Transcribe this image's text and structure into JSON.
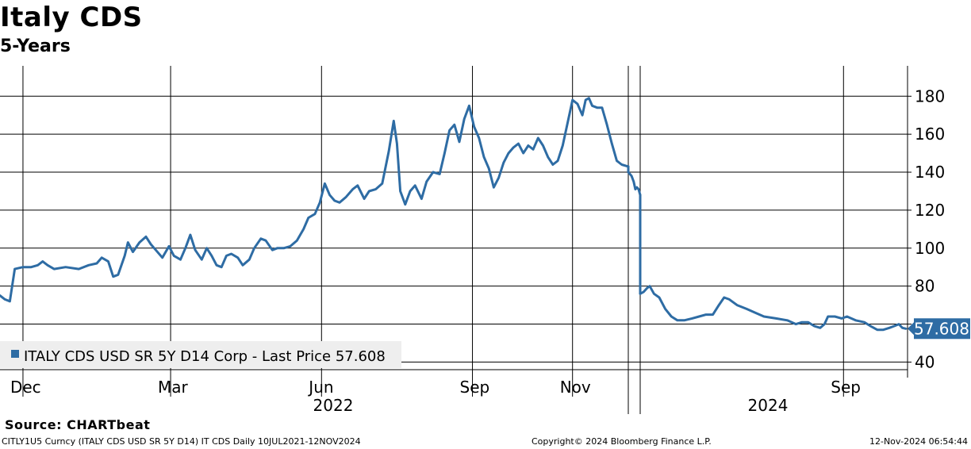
{
  "header": {
    "title": "Italy CDS",
    "subtitle": "5-Years"
  },
  "footer": {
    "source": "Source: CHARTbeat",
    "ticker_info": "CITLY1U5 Curncy (ITALY CDS USD SR 5Y D14) IT CDS  Daily 10JUL2021-12NOV2024",
    "copyright": "Copyright© 2024 Bloomberg Finance L.P.",
    "timestamp": "12-Nov-2024 06:54:44"
  },
  "colors": {
    "series": "#2e6ca4",
    "label_bg": "#2e6ca4",
    "legend_bg": "#eeeeee",
    "grid": "#000000"
  },
  "chart_data": {
    "type": "line",
    "x_type": "date",
    "series_name": "ITALY CDS USD SR 5Y D14 Corp - Last Price 57.608",
    "last_value_label": "57.608",
    "last_value": 57.608,
    "ylim": [
      36,
      196
    ],
    "y_ticks": [
      40,
      60,
      80,
      100,
      120,
      140,
      160,
      180
    ],
    "y_tick_labels": [
      "40",
      "",
      "80",
      "100",
      "120",
      "140",
      "160",
      "180"
    ],
    "y_axis_side": "right",
    "grid": true,
    "legend_position": "bottom-left",
    "segments": [
      {
        "xlim": [
          "2021-11-17",
          "2022-12-05"
        ],
        "x_ticks": [
          "2021-12-01",
          "2022-03-01",
          "2022-06-01",
          "2022-09-01",
          "2022-11-01"
        ],
        "month_labels": [
          "Dec",
          "Mar",
          "Jun",
          "Sep",
          "Nov"
        ],
        "year_label": "2022",
        "points": [
          [
            "2021-11-17",
            75
          ],
          [
            "2021-11-20",
            73
          ],
          [
            "2021-11-23",
            72
          ],
          [
            "2021-11-26",
            89
          ],
          [
            "2021-12-01",
            90
          ],
          [
            "2021-12-06",
            90
          ],
          [
            "2021-12-10",
            91
          ],
          [
            "2021-12-13",
            93
          ],
          [
            "2021-12-16",
            91
          ],
          [
            "2021-12-20",
            89
          ],
          [
            "2021-12-27",
            90
          ],
          [
            "2022-01-04",
            89
          ],
          [
            "2022-01-10",
            91
          ],
          [
            "2022-01-15",
            92
          ],
          [
            "2022-01-18",
            95
          ],
          [
            "2022-01-22",
            93
          ],
          [
            "2022-01-25",
            85
          ],
          [
            "2022-01-28",
            86
          ],
          [
            "2022-02-01",
            96
          ],
          [
            "2022-02-03",
            103
          ],
          [
            "2022-02-06",
            98
          ],
          [
            "2022-02-10",
            103
          ],
          [
            "2022-02-14",
            106
          ],
          [
            "2022-02-17",
            102
          ],
          [
            "2022-02-20",
            99
          ],
          [
            "2022-02-24",
            95
          ],
          [
            "2022-02-28",
            101
          ],
          [
            "2022-03-03",
            96
          ],
          [
            "2022-03-07",
            94
          ],
          [
            "2022-03-10",
            100
          ],
          [
            "2022-03-13",
            107
          ],
          [
            "2022-03-16",
            99
          ],
          [
            "2022-03-20",
            94
          ],
          [
            "2022-03-23",
            100
          ],
          [
            "2022-03-26",
            96
          ],
          [
            "2022-03-29",
            91
          ],
          [
            "2022-04-01",
            90
          ],
          [
            "2022-04-04",
            96
          ],
          [
            "2022-04-07",
            97
          ],
          [
            "2022-04-11",
            95
          ],
          [
            "2022-04-14",
            91
          ],
          [
            "2022-04-18",
            94
          ],
          [
            "2022-04-21",
            100
          ],
          [
            "2022-04-25",
            105
          ],
          [
            "2022-04-28",
            104
          ],
          [
            "2022-05-02",
            99
          ],
          [
            "2022-05-05",
            100
          ],
          [
            "2022-05-09",
            100
          ],
          [
            "2022-05-13",
            101
          ],
          [
            "2022-05-17",
            104
          ],
          [
            "2022-05-21",
            110
          ],
          [
            "2022-05-24",
            116
          ],
          [
            "2022-05-28",
            118
          ],
          [
            "2022-05-31",
            124
          ],
          [
            "2022-06-03",
            134
          ],
          [
            "2022-06-06",
            128
          ],
          [
            "2022-06-09",
            125
          ],
          [
            "2022-06-12",
            124
          ],
          [
            "2022-06-16",
            127
          ],
          [
            "2022-06-20",
            131
          ],
          [
            "2022-06-23",
            133
          ],
          [
            "2022-06-27",
            126
          ],
          [
            "2022-06-30",
            130
          ],
          [
            "2022-07-04",
            131
          ],
          [
            "2022-07-08",
            134
          ],
          [
            "2022-07-12",
            151
          ],
          [
            "2022-07-15",
            167
          ],
          [
            "2022-07-17",
            155
          ],
          [
            "2022-07-19",
            130
          ],
          [
            "2022-07-22",
            123
          ],
          [
            "2022-07-25",
            130
          ],
          [
            "2022-07-28",
            133
          ],
          [
            "2022-08-01",
            126
          ],
          [
            "2022-08-04",
            135
          ],
          [
            "2022-08-08",
            140
          ],
          [
            "2022-08-12",
            139
          ],
          [
            "2022-08-15",
            150
          ],
          [
            "2022-08-18",
            162
          ],
          [
            "2022-08-21",
            165
          ],
          [
            "2022-08-24",
            156
          ],
          [
            "2022-08-27",
            168
          ],
          [
            "2022-08-30",
            175
          ],
          [
            "2022-09-02",
            164
          ],
          [
            "2022-09-05",
            158
          ],
          [
            "2022-09-08",
            148
          ],
          [
            "2022-09-11",
            142
          ],
          [
            "2022-09-14",
            132
          ],
          [
            "2022-09-17",
            137
          ],
          [
            "2022-09-20",
            145
          ],
          [
            "2022-09-23",
            150
          ],
          [
            "2022-09-26",
            153
          ],
          [
            "2022-09-29",
            155
          ],
          [
            "2022-10-02",
            150
          ],
          [
            "2022-10-05",
            154
          ],
          [
            "2022-10-08",
            152
          ],
          [
            "2022-10-11",
            158
          ],
          [
            "2022-10-14",
            154
          ],
          [
            "2022-10-17",
            148
          ],
          [
            "2022-10-20",
            144
          ],
          [
            "2022-10-23",
            146
          ],
          [
            "2022-10-26",
            154
          ],
          [
            "2022-10-29",
            166
          ],
          [
            "2022-11-01",
            178
          ],
          [
            "2022-11-04",
            176
          ],
          [
            "2022-11-07",
            170
          ],
          [
            "2022-11-09",
            178
          ],
          [
            "2022-11-11",
            179
          ],
          [
            "2022-11-13",
            175
          ],
          [
            "2022-11-16",
            174
          ],
          [
            "2022-11-19",
            174
          ],
          [
            "2022-11-22",
            165
          ],
          [
            "2022-11-25",
            155
          ],
          [
            "2022-11-28",
            146
          ],
          [
            "2022-12-01",
            144
          ],
          [
            "2022-12-05",
            143
          ]
        ]
      },
      {
        "xlim": [
          "2023-09-22",
          "2023-10-14"
        ],
        "points": [
          [
            "2023-09-22",
            140
          ],
          [
            "2023-09-28",
            138
          ],
          [
            "2023-10-02",
            135
          ],
          [
            "2023-10-05",
            131
          ],
          [
            "2023-10-08",
            132
          ],
          [
            "2023-10-11",
            131
          ],
          [
            "2023-10-14",
            128
          ]
        ]
      },
      {
        "xlim": [
          "2024-01-10",
          "2024-11-14"
        ],
        "x_ticks": [
          "2024-09-01"
        ],
        "month_labels": [
          "Sep"
        ],
        "year_label": "2024",
        "points": [
          [
            "2024-01-10",
            76
          ],
          [
            "2024-01-14",
            77
          ],
          [
            "2024-01-18",
            79
          ],
          [
            "2024-01-21",
            80
          ],
          [
            "2024-01-26",
            76
          ],
          [
            "2024-02-01",
            74
          ],
          [
            "2024-02-08",
            68
          ],
          [
            "2024-02-15",
            64
          ],
          [
            "2024-02-22",
            62
          ],
          [
            "2024-03-01",
            62
          ],
          [
            "2024-03-10",
            63
          ],
          [
            "2024-03-18",
            64
          ],
          [
            "2024-03-26",
            65
          ],
          [
            "2024-04-03",
            65
          ],
          [
            "2024-04-10",
            70
          ],
          [
            "2024-04-16",
            74
          ],
          [
            "2024-04-22",
            73
          ],
          [
            "2024-05-01",
            70
          ],
          [
            "2024-05-12",
            68
          ],
          [
            "2024-05-22",
            66
          ],
          [
            "2024-06-01",
            64
          ],
          [
            "2024-06-15",
            63
          ],
          [
            "2024-06-28",
            62
          ],
          [
            "2024-07-08",
            60
          ],
          [
            "2024-07-15",
            61
          ],
          [
            "2024-07-22",
            61
          ],
          [
            "2024-07-29",
            59
          ],
          [
            "2024-08-05",
            58
          ],
          [
            "2024-08-10",
            60
          ],
          [
            "2024-08-14",
            64
          ],
          [
            "2024-08-22",
            64
          ],
          [
            "2024-08-30",
            63
          ],
          [
            "2024-09-05",
            64
          ],
          [
            "2024-09-15",
            62
          ],
          [
            "2024-09-25",
            61
          ],
          [
            "2024-10-02",
            59
          ],
          [
            "2024-10-10",
            57
          ],
          [
            "2024-10-17",
            57
          ],
          [
            "2024-10-24",
            58
          ],
          [
            "2024-10-30",
            59
          ],
          [
            "2024-11-04",
            60
          ],
          [
            "2024-11-08",
            58
          ],
          [
            "2024-11-12",
            57.608
          ]
        ]
      }
    ]
  }
}
